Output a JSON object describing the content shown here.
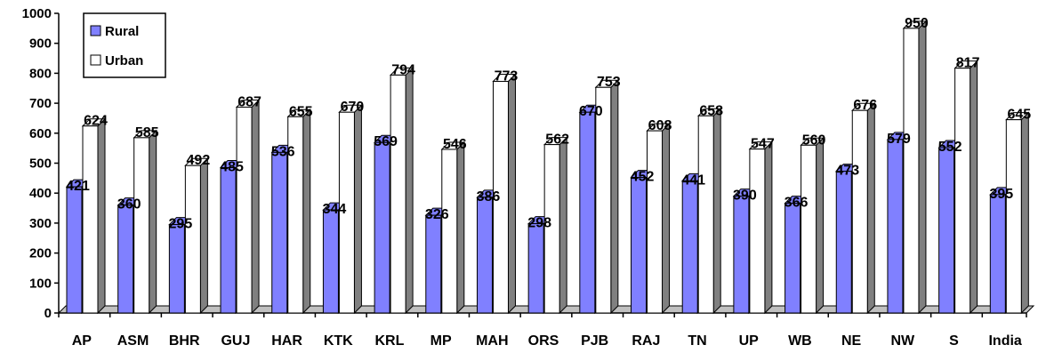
{
  "chart_data": {
    "type": "bar",
    "categories": [
      "AP",
      "ASM",
      "BHR",
      "GUJ",
      "HAR",
      "KTK",
      "KRL",
      "MP",
      "MAH",
      "ORS",
      "PJB",
      "RAJ",
      "TN",
      "UP",
      "WB",
      "NE",
      "NW",
      "S",
      "India"
    ],
    "series": [
      {
        "name": "Rural",
        "values": [
          421,
          360,
          295,
          485,
          536,
          344,
          569,
          326,
          386,
          298,
          670,
          452,
          441,
          390,
          366,
          473,
          579,
          552,
          395
        ]
      },
      {
        "name": "Urban",
        "values": [
          624,
          585,
          492,
          687,
          655,
          670,
          794,
          546,
          773,
          562,
          753,
          608,
          658,
          547,
          560,
          676,
          950,
          817,
          645
        ]
      }
    ],
    "title": "",
    "xlabel": "",
    "ylabel": "",
    "ylim": [
      0,
      1000
    ],
    "yticks": [
      0,
      100,
      200,
      300,
      400,
      500,
      600,
      700,
      800,
      900,
      1000
    ],
    "grid": false,
    "legend_position": "top-left",
    "colors": {
      "Rural": "#8080ff",
      "Urban": "#ffffff",
      "side": "#808080",
      "floor": "#c0c0c0"
    }
  }
}
